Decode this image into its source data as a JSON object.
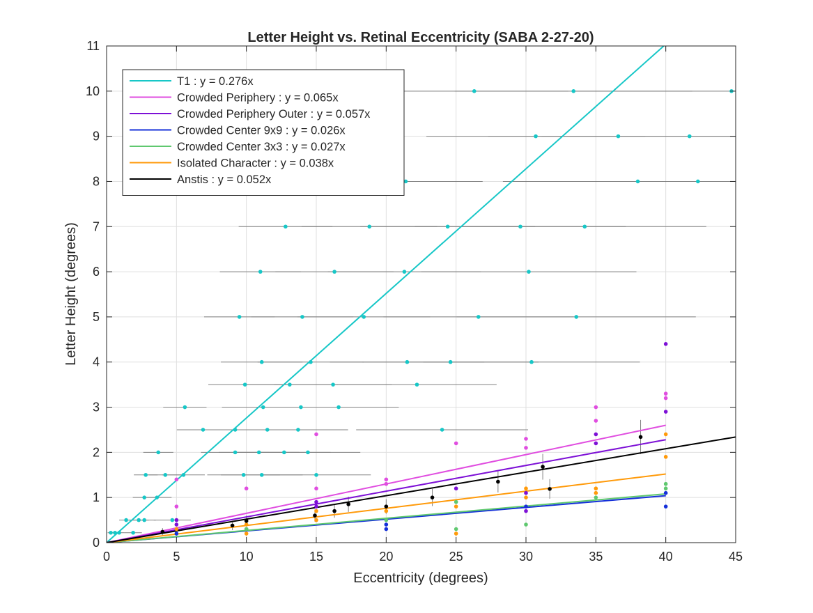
{
  "chart_data": {
    "type": "scatter",
    "title": "Letter Height vs. Retinal Eccentricity (SABA 2-27-20)",
    "xlabel": "Eccentricity (degrees)",
    "ylabel": "Letter Height (degrees)",
    "xlim": [
      0,
      45
    ],
    "ylim": [
      0,
      11
    ],
    "xticks": [
      "0",
      "5",
      "10",
      "15",
      "20",
      "25",
      "30",
      "35",
      "40",
      "45"
    ],
    "yticks": [
      "0",
      "1",
      "2",
      "3",
      "4",
      "5",
      "6",
      "7",
      "8",
      "9",
      "10",
      "11"
    ],
    "grid": true,
    "legend_position": "top-left",
    "errorbar_color": "#808080",
    "series": [
      {
        "name": "T1 : y = 0.276x",
        "color": "#17c7c7",
        "slope": 0.276,
        "fit_xmax": 45,
        "errorbars": "horizontal",
        "points": [
          {
            "x": 0.3,
            "y": 0.22
          },
          {
            "x": 0.6,
            "y": 0.22
          },
          {
            "x": 0.9,
            "y": 0.22
          },
          {
            "x": 1.4,
            "y": 0.5
          },
          {
            "x": 2.3,
            "y": 0.5
          },
          {
            "x": 2.7,
            "y": 0.5
          },
          {
            "x": 2.7,
            "y": 1.0
          },
          {
            "x": 3.6,
            "y": 1.0
          },
          {
            "x": 2.8,
            "y": 1.5
          },
          {
            "x": 4.2,
            "y": 1.5
          },
          {
            "x": 5.5,
            "y": 1.5
          },
          {
            "x": 3.7,
            "y": 2.0
          },
          {
            "x": 4.7,
            "y": 0.5
          },
          {
            "x": 1.9,
            "y": 0.22
          },
          {
            "x": 5.6,
            "y": 3.0
          },
          {
            "x": 6.9,
            "y": 2.5
          },
          {
            "x": 9.2,
            "y": 2.0
          },
          {
            "x": 10.9,
            "y": 2.0
          },
          {
            "x": 12.7,
            "y": 2.0
          },
          {
            "x": 14.4,
            "y": 2.0
          },
          {
            "x": 9.8,
            "y": 1.5
          },
          {
            "x": 11.1,
            "y": 1.5
          },
          {
            "x": 15.0,
            "y": 1.5
          },
          {
            "x": 9.2,
            "y": 2.5
          },
          {
            "x": 11.5,
            "y": 2.5
          },
          {
            "x": 13.7,
            "y": 2.5
          },
          {
            "x": 11.2,
            "y": 3.0
          },
          {
            "x": 13.9,
            "y": 3.0
          },
          {
            "x": 16.6,
            "y": 3.0
          },
          {
            "x": 9.9,
            "y": 3.5
          },
          {
            "x": 13.1,
            "y": 3.5
          },
          {
            "x": 16.2,
            "y": 3.5
          },
          {
            "x": 22.2,
            "y": 3.5
          },
          {
            "x": 11.1,
            "y": 4.0
          },
          {
            "x": 14.6,
            "y": 4.0
          },
          {
            "x": 21.5,
            "y": 4.0
          },
          {
            "x": 24.6,
            "y": 4.0
          },
          {
            "x": 30.4,
            "y": 4.0
          },
          {
            "x": 9.5,
            "y": 5.0
          },
          {
            "x": 14.0,
            "y": 5.0
          },
          {
            "x": 18.4,
            "y": 5.0
          },
          {
            "x": 26.6,
            "y": 5.0
          },
          {
            "x": 33.6,
            "y": 5.0
          },
          {
            "x": 11.0,
            "y": 6.0
          },
          {
            "x": 16.3,
            "y": 6.0
          },
          {
            "x": 21.3,
            "y": 6.0
          },
          {
            "x": 30.2,
            "y": 6.0
          },
          {
            "x": 12.8,
            "y": 7.0
          },
          {
            "x": 18.8,
            "y": 7.0
          },
          {
            "x": 24.4,
            "y": 7.0
          },
          {
            "x": 29.6,
            "y": 7.0
          },
          {
            "x": 34.2,
            "y": 7.0
          },
          {
            "x": 21.4,
            "y": 8.0
          },
          {
            "x": 38.0,
            "y": 8.0
          },
          {
            "x": 42.3,
            "y": 8.0
          },
          {
            "x": 30.7,
            "y": 9.0
          },
          {
            "x": 36.6,
            "y": 9.0
          },
          {
            "x": 41.7,
            "y": 9.0
          },
          {
            "x": 26.3,
            "y": 10.0
          },
          {
            "x": 33.4,
            "y": 10.0
          },
          {
            "x": 44.7,
            "y": 10.0
          },
          {
            "x": 24.0,
            "y": 2.5
          }
        ]
      },
      {
        "name": "Crowded Periphery : y = 0.065x",
        "color": "#e04de0",
        "slope": 0.065,
        "fit_xmax": 40,
        "errorbars": "none",
        "points": [
          {
            "x": 5,
            "y": 0.8
          },
          {
            "x": 5,
            "y": 1.4
          },
          {
            "x": 10,
            "y": 1.2
          },
          {
            "x": 15,
            "y": 1.2
          },
          {
            "x": 15,
            "y": 2.4
          },
          {
            "x": 20,
            "y": 1.4
          },
          {
            "x": 20,
            "y": 1.3
          },
          {
            "x": 25,
            "y": 2.2
          },
          {
            "x": 30,
            "y": 2.1
          },
          {
            "x": 30,
            "y": 2.3
          },
          {
            "x": 35,
            "y": 2.7
          },
          {
            "x": 35,
            "y": 3.0
          },
          {
            "x": 40,
            "y": 3.2
          },
          {
            "x": 40,
            "y": 3.3
          }
        ]
      },
      {
        "name": "Crowded Periphery Outer : y = 0.057x",
        "color": "#7d10d6",
        "slope": 0.057,
        "fit_xmax": 40,
        "errorbars": "none",
        "points": [
          {
            "x": 5,
            "y": 0.5
          },
          {
            "x": 5,
            "y": 0.4
          },
          {
            "x": 15,
            "y": 0.9
          },
          {
            "x": 15,
            "y": 0.8
          },
          {
            "x": 25,
            "y": 1.2
          },
          {
            "x": 30,
            "y": 1.1
          },
          {
            "x": 30,
            "y": 0.7
          },
          {
            "x": 35,
            "y": 2.2
          },
          {
            "x": 35,
            "y": 2.4
          },
          {
            "x": 40,
            "y": 2.9
          },
          {
            "x": 40,
            "y": 4.4
          }
        ]
      },
      {
        "name": "Crowded Center 9x9 : y = 0.026x",
        "color": "#1530d9",
        "slope": 0.026,
        "fit_xmax": 40,
        "errorbars": "none",
        "points": [
          {
            "x": 5,
            "y": 0.2
          },
          {
            "x": 10,
            "y": 0.3
          },
          {
            "x": 20,
            "y": 0.3
          },
          {
            "x": 20,
            "y": 0.4
          },
          {
            "x": 30,
            "y": 0.8
          },
          {
            "x": 40,
            "y": 0.8
          },
          {
            "x": 40,
            "y": 1.1
          }
        ]
      },
      {
        "name": "Crowded Center 3x3 : y = 0.027x",
        "color": "#5fc86f",
        "slope": 0.027,
        "fit_xmax": 40,
        "errorbars": "none",
        "points": [
          {
            "x": 10,
            "y": 0.3
          },
          {
            "x": 20,
            "y": 0.5
          },
          {
            "x": 25,
            "y": 0.9
          },
          {
            "x": 25,
            "y": 0.3
          },
          {
            "x": 30,
            "y": 0.4
          },
          {
            "x": 35,
            "y": 1.0
          },
          {
            "x": 40,
            "y": 1.3
          },
          {
            "x": 40,
            "y": 1.2
          }
        ]
      },
      {
        "name": "Isolated Character : y = 0.038x",
        "color": "#ff9a0a",
        "slope": 0.038,
        "fit_xmax": 40,
        "errorbars": "none",
        "points": [
          {
            "x": 5,
            "y": 0.3
          },
          {
            "x": 10,
            "y": 0.2
          },
          {
            "x": 10,
            "y": 0.4
          },
          {
            "x": 15,
            "y": 0.5
          },
          {
            "x": 15,
            "y": 0.7
          },
          {
            "x": 20,
            "y": 0.7
          },
          {
            "x": 25,
            "y": 0.2
          },
          {
            "x": 25,
            "y": 0.8
          },
          {
            "x": 30,
            "y": 1.0
          },
          {
            "x": 30,
            "y": 1.2
          },
          {
            "x": 35,
            "y": 1.1
          },
          {
            "x": 35,
            "y": 1.2
          },
          {
            "x": 40,
            "y": 1.9
          },
          {
            "x": 40,
            "y": 2.4
          }
        ]
      },
      {
        "name": "Anstis : y = 0.052x",
        "color": "#000000",
        "slope": 0.052,
        "fit_xmax": 45,
        "errorbars": "vertical",
        "points": [
          {
            "x": 4.0,
            "y": 0.24
          },
          {
            "x": 9.0,
            "y": 0.38
          },
          {
            "x": 10.0,
            "y": 0.48
          },
          {
            "x": 14.9,
            "y": 0.6
          },
          {
            "x": 16.3,
            "y": 0.7
          },
          {
            "x": 17.3,
            "y": 0.85
          },
          {
            "x": 20.0,
            "y": 0.8
          },
          {
            "x": 23.3,
            "y": 1.0
          },
          {
            "x": 28.0,
            "y": 1.35
          },
          {
            "x": 31.2,
            "y": 1.68
          },
          {
            "x": 31.7,
            "y": 1.19
          },
          {
            "x": 38.2,
            "y": 2.34
          }
        ]
      }
    ]
  }
}
